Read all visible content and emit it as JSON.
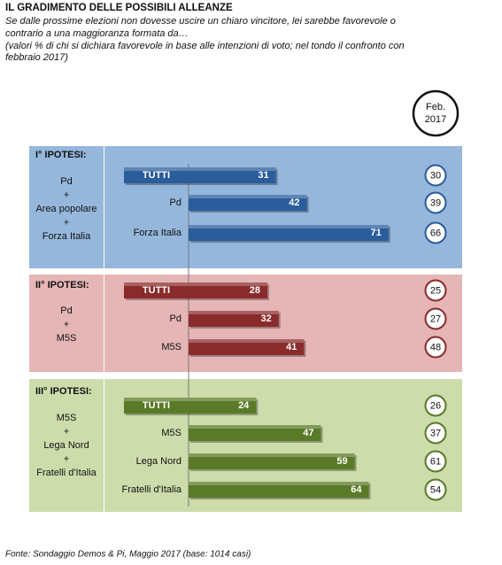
{
  "chart_data": {
    "type": "bar",
    "title": "IL GRADIMENTO DELLE POSSIBILI ALLEANZE",
    "subtitle": [
      "Se dalle prossime elezioni non dovesse uscire un chiaro vincitore, lei sarebbe favorevole o",
      "contrario a una maggioranza formata da…"
    ],
    "note": [
      "(valori % di chi si dichiara favorevole in base alle intenzioni di voto; nel tondo il confronto con",
      "febbraio 2017)"
    ],
    "comparison_header": [
      "Feb.",
      "2017"
    ],
    "groups": [
      {
        "label": "I° IPOTESI:",
        "description": [
          "Pd",
          "+",
          "Area popolare",
          "+",
          "Forza Italia"
        ],
        "background": "#95b7dc",
        "color": "#2b5c9b",
        "bars": [
          {
            "category": "TUTTI",
            "value": 31,
            "previous": 30
          },
          {
            "category": "Pd",
            "value": 42,
            "previous": 39
          },
          {
            "category": "Forza Italia",
            "value": 71,
            "previous": 66
          }
        ]
      },
      {
        "label": "II° IPOTESI:",
        "description": [
          "Pd",
          "+",
          "M5S"
        ],
        "background": "#e6b5b6",
        "color": "#8a2b2b",
        "bars": [
          {
            "category": "TUTTI",
            "value": 28,
            "previous": 25
          },
          {
            "category": "Pd",
            "value": 32,
            "previous": 27
          },
          {
            "category": "M5S",
            "value": 41,
            "previous": 48
          }
        ]
      },
      {
        "label": "III° IPOTESI:",
        "description": [
          "M5S",
          "+",
          "Lega Nord",
          "+",
          "Fratelli d'Italia"
        ],
        "background": "#cddcab",
        "color": "#5a7a28",
        "bars": [
          {
            "category": "TUTTI",
            "value": 24,
            "previous": 26
          },
          {
            "category": "M5S",
            "value": 47,
            "previous": 37
          },
          {
            "category": "Lega Nord",
            "value": 59,
            "previous": 61
          },
          {
            "category": "Fratelli d'Italia",
            "value": 64,
            "previous": 54
          }
        ]
      }
    ],
    "source": "Fonte: Sondaggio Demos & Pi, Maggio 2017 (base: 1014 casi)"
  }
}
